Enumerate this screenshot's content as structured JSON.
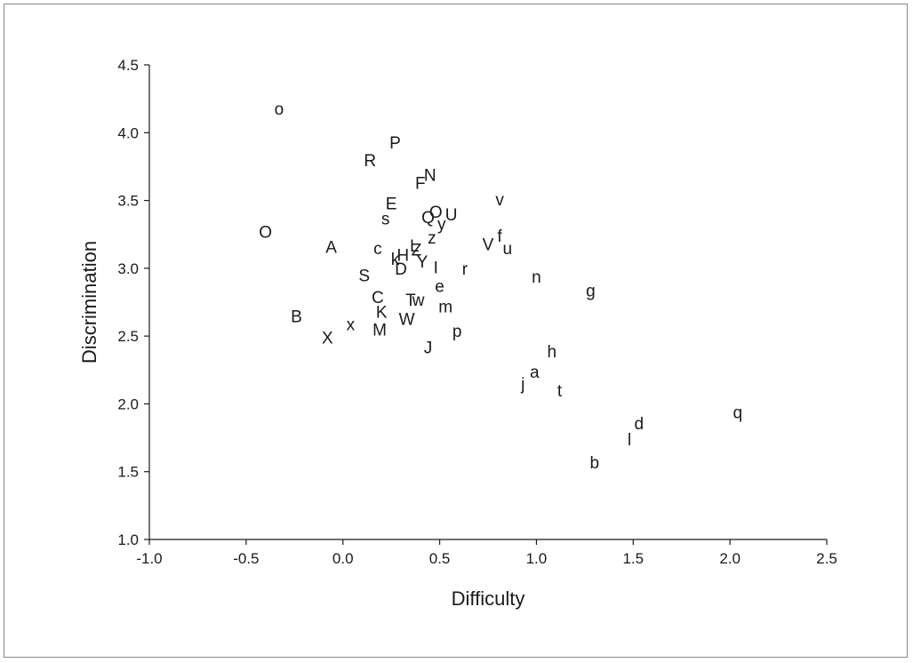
{
  "chart_data": {
    "type": "scatter",
    "title": "",
    "xlabel": "Difficulty",
    "ylabel": "Discrimination",
    "xlim": [
      -1.0,
      2.5
    ],
    "ylim": [
      1.0,
      4.5
    ],
    "grid": false,
    "legend": "none",
    "xticks": [
      "-1.0",
      "-0.5",
      "0.0",
      "0.5",
      "1.0",
      "1.5",
      "2.0",
      "2.5"
    ],
    "yticks": [
      "1.0",
      "1.5",
      "2.0",
      "2.5",
      "3.0",
      "3.5",
      "4.0",
      "4.5"
    ],
    "points": [
      {
        "label": "o",
        "x": -0.33,
        "y": 4.18
      },
      {
        "label": "P",
        "x": 0.27,
        "y": 3.93
      },
      {
        "label": "R",
        "x": 0.14,
        "y": 3.8
      },
      {
        "label": "N",
        "x": 0.45,
        "y": 3.69
      },
      {
        "label": "F",
        "x": 0.4,
        "y": 3.63
      },
      {
        "label": "E",
        "x": 0.25,
        "y": 3.48
      },
      {
        "label": "v",
        "x": 0.81,
        "y": 3.51
      },
      {
        "label": "O",
        "x": 0.48,
        "y": 3.42
      },
      {
        "label": "U",
        "x": 0.56,
        "y": 3.4
      },
      {
        "label": "s",
        "x": 0.22,
        "y": 3.37
      },
      {
        "label": "Q",
        "x": 0.44,
        "y": 3.38
      },
      {
        "label": "y",
        "x": 0.51,
        "y": 3.33
      },
      {
        "label": "O",
        "x": -0.4,
        "y": 3.27
      },
      {
        "label": "z",
        "x": 0.46,
        "y": 3.23
      },
      {
        "label": "f",
        "x": 0.81,
        "y": 3.24
      },
      {
        "label": "V",
        "x": 0.75,
        "y": 3.18
      },
      {
        "label": "u",
        "x": 0.85,
        "y": 3.15
      },
      {
        "label": "A",
        "x": -0.06,
        "y": 3.16
      },
      {
        "label": "c",
        "x": 0.18,
        "y": 3.15
      },
      {
        "label": "L",
        "x": 0.37,
        "y": 3.17
      },
      {
        "label": "Z",
        "x": 0.38,
        "y": 3.14
      },
      {
        "label": "H",
        "x": 0.31,
        "y": 3.1
      },
      {
        "label": "k",
        "x": 0.27,
        "y": 3.07
      },
      {
        "label": "Y",
        "x": 0.41,
        "y": 3.05
      },
      {
        "label": "D",
        "x": 0.3,
        "y": 3.0
      },
      {
        "label": "I",
        "x": 0.48,
        "y": 3.01
      },
      {
        "label": "r",
        "x": 0.63,
        "y": 3.0
      },
      {
        "label": "n",
        "x": 1.0,
        "y": 2.94
      },
      {
        "label": "S",
        "x": 0.11,
        "y": 2.95
      },
      {
        "label": "g",
        "x": 1.28,
        "y": 2.84
      },
      {
        "label": "e",
        "x": 0.5,
        "y": 2.87
      },
      {
        "label": "C",
        "x": 0.18,
        "y": 2.79
      },
      {
        "label": "T",
        "x": 0.35,
        "y": 2.77
      },
      {
        "label": "w",
        "x": 0.39,
        "y": 2.77
      },
      {
        "label": "m",
        "x": 0.53,
        "y": 2.72
      },
      {
        "label": "B",
        "x": -0.24,
        "y": 2.65
      },
      {
        "label": "K",
        "x": 0.2,
        "y": 2.68
      },
      {
        "label": "W",
        "x": 0.33,
        "y": 2.63
      },
      {
        "label": "x",
        "x": 0.04,
        "y": 2.59
      },
      {
        "label": "M",
        "x": 0.19,
        "y": 2.55
      },
      {
        "label": "p",
        "x": 0.59,
        "y": 2.54
      },
      {
        "label": "X",
        "x": -0.08,
        "y": 2.49
      },
      {
        "label": "J",
        "x": 0.44,
        "y": 2.42
      },
      {
        "label": "h",
        "x": 1.08,
        "y": 2.39
      },
      {
        "label": "a",
        "x": 0.99,
        "y": 2.24
      },
      {
        "label": "j",
        "x": 0.93,
        "y": 2.15
      },
      {
        "label": "t",
        "x": 1.12,
        "y": 2.1
      },
      {
        "label": "q",
        "x": 2.04,
        "y": 1.94
      },
      {
        "label": "d",
        "x": 1.53,
        "y": 1.86
      },
      {
        "label": "l",
        "x": 1.48,
        "y": 1.74
      },
      {
        "label": "b",
        "x": 1.3,
        "y": 1.57
      }
    ]
  }
}
